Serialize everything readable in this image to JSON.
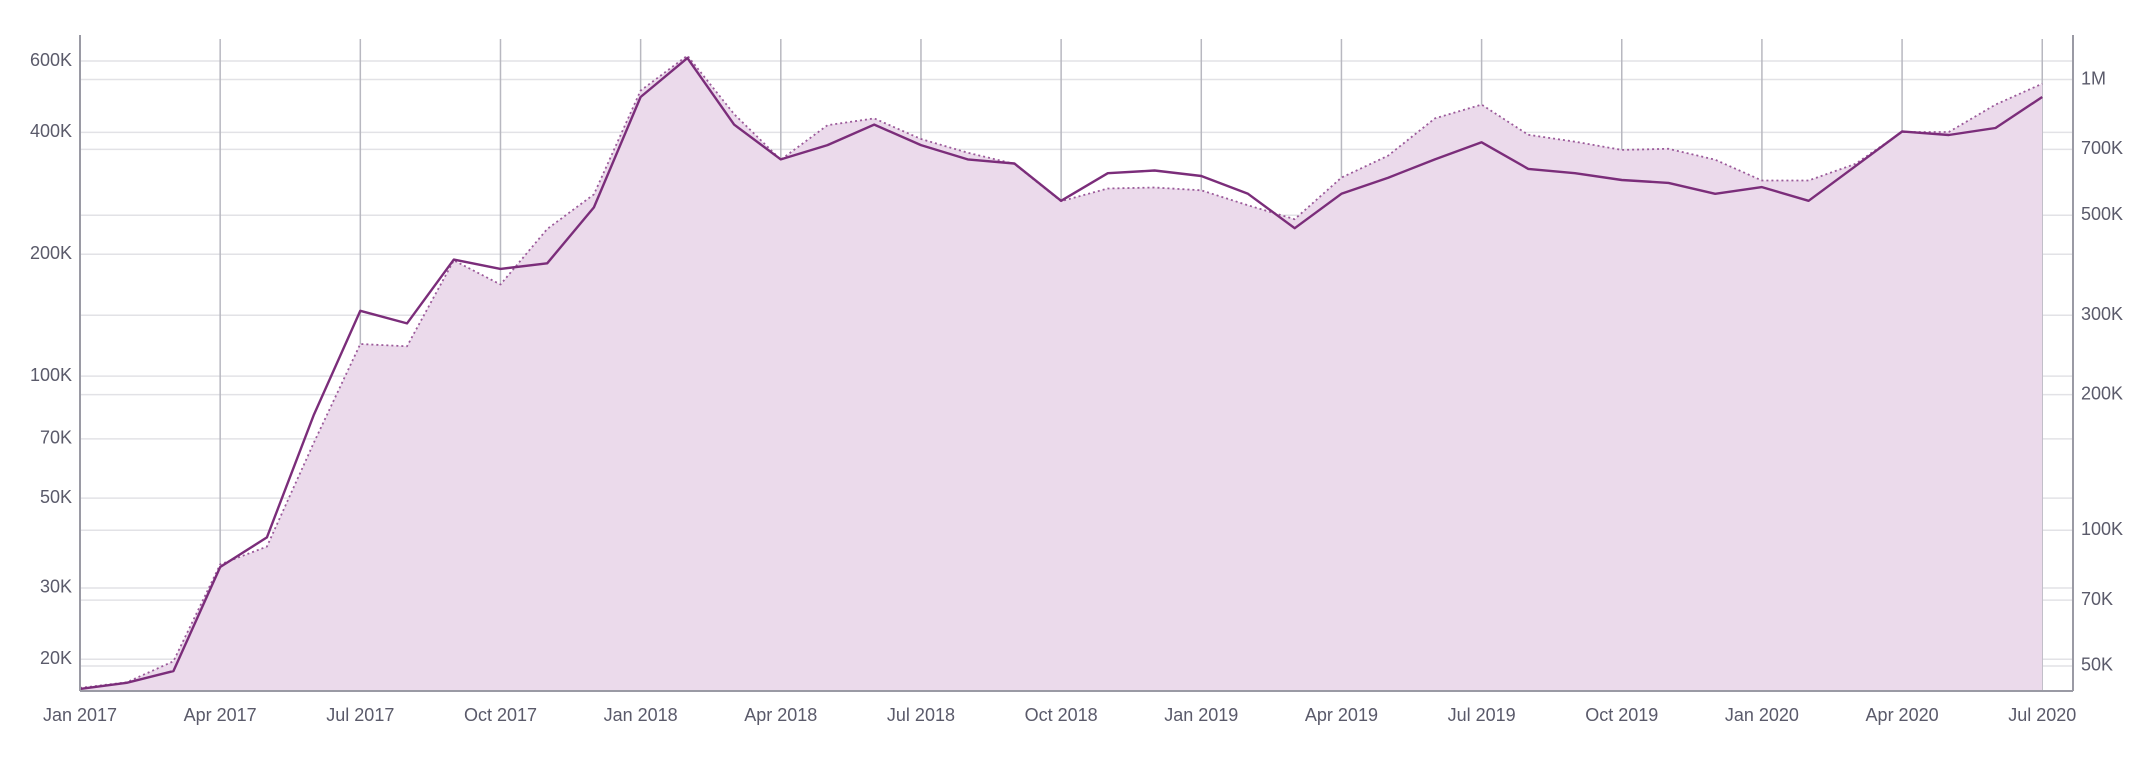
{
  "chart_data": {
    "type": "line",
    "scale": "log",
    "grid": true,
    "x": [
      "2017-01",
      "2017-02",
      "2017-03",
      "2017-04",
      "2017-05",
      "2017-06",
      "2017-07",
      "2017-08",
      "2017-09",
      "2017-10",
      "2017-11",
      "2017-12",
      "2018-01",
      "2018-02",
      "2018-03",
      "2018-04",
      "2018-05",
      "2018-06",
      "2018-07",
      "2018-08",
      "2018-09",
      "2018-10",
      "2018-11",
      "2018-12",
      "2019-01",
      "2019-02",
      "2019-03",
      "2019-04",
      "2019-05",
      "2019-06",
      "2019-07",
      "2019-08",
      "2019-09",
      "2019-10",
      "2019-11",
      "2019-12",
      "2020-01",
      "2020-02",
      "2020-03",
      "2020-04",
      "2020-05",
      "2020-06",
      "2020-07"
    ],
    "xticks": [
      {
        "value": "2017-01",
        "label": "Jan 2017"
      },
      {
        "value": "2017-04",
        "label": "Apr 2017"
      },
      {
        "value": "2017-07",
        "label": "Jul 2017"
      },
      {
        "value": "2017-10",
        "label": "Oct 2017"
      },
      {
        "value": "2018-01",
        "label": "Jan 2018"
      },
      {
        "value": "2018-04",
        "label": "Apr 2018"
      },
      {
        "value": "2018-07",
        "label": "Jul 2018"
      },
      {
        "value": "2018-10",
        "label": "Oct 2018"
      },
      {
        "value": "2019-01",
        "label": "Jan 2019"
      },
      {
        "value": "2019-04",
        "label": "Apr 2019"
      },
      {
        "value": "2019-07",
        "label": "Jul 2019"
      },
      {
        "value": "2019-10",
        "label": "Oct 2019"
      },
      {
        "value": "2020-01",
        "label": "Jan 2020"
      },
      {
        "value": "2020-04",
        "label": "Apr 2020"
      },
      {
        "value": "2020-07",
        "label": "Jul 2020"
      }
    ],
    "ylim": [
      16700,
      680000
    ],
    "yticks": [
      {
        "value": 20000,
        "label": "20K"
      },
      {
        "value": 30000,
        "label": "30K"
      },
      {
        "value": 50000,
        "label": "50K"
      },
      {
        "value": 70000,
        "label": "70K"
      },
      {
        "value": 100000,
        "label": "100K"
      },
      {
        "value": 200000,
        "label": "200K"
      },
      {
        "value": 400000,
        "label": "400K"
      },
      {
        "value": 600000,
        "label": "600K"
      }
    ],
    "y2lim": [
      44000,
      1230000
    ],
    "y2ticks": [
      {
        "value": 50000,
        "label": "50K"
      },
      {
        "value": 70000,
        "label": "70K"
      },
      {
        "value": 100000,
        "label": "100K"
      },
      {
        "value": 200000,
        "label": "200K"
      },
      {
        "value": 300000,
        "label": "300K"
      },
      {
        "value": 500000,
        "label": "500K"
      },
      {
        "value": 700000,
        "label": "700K"
      },
      {
        "value": 1000000,
        "label": "1M"
      }
    ],
    "series": [
      {
        "color": "#9b5a9a",
        "fill": "#ebdaeb",
        "style": "dotted",
        "axis": "y2",
        "values": [
          44700,
          46000,
          51200,
          84000,
          92000,
          156000,
          259000,
          256000,
          397000,
          351000,
          466000,
          556000,
          945000,
          1130000,
          838000,
          664000,
          792000,
          820000,
          738000,
          688000,
          650000,
          537000,
          573000,
          576000,
          568000,
          526000,
          490000,
          606000,
          678000,
          820000,
          880000,
          754000,
          728000,
          698000,
          702000,
          664000,
          597000,
          597000,
          650000,
          765000,
          765000,
          880000,
          979000
        ]
      },
      {
        "color": "#7b2d7a",
        "style": "solid",
        "values": [
          16900,
          17500,
          18700,
          33800,
          40000,
          80000,
          145000,
          135000,
          194000,
          184000,
          190000,
          261000,
          489000,
          610000,
          418000,
          343000,
          372000,
          418000,
          372000,
          343000,
          335000,
          271000,
          317000,
          322000,
          312000,
          282000,
          232000,
          282000,
          309000,
          343000,
          378000,
          325000,
          317000,
          305000,
          300000,
          282000,
          293000,
          271000,
          330000,
          402000,
          394000,
          410000,
          489000
        ]
      }
    ]
  }
}
